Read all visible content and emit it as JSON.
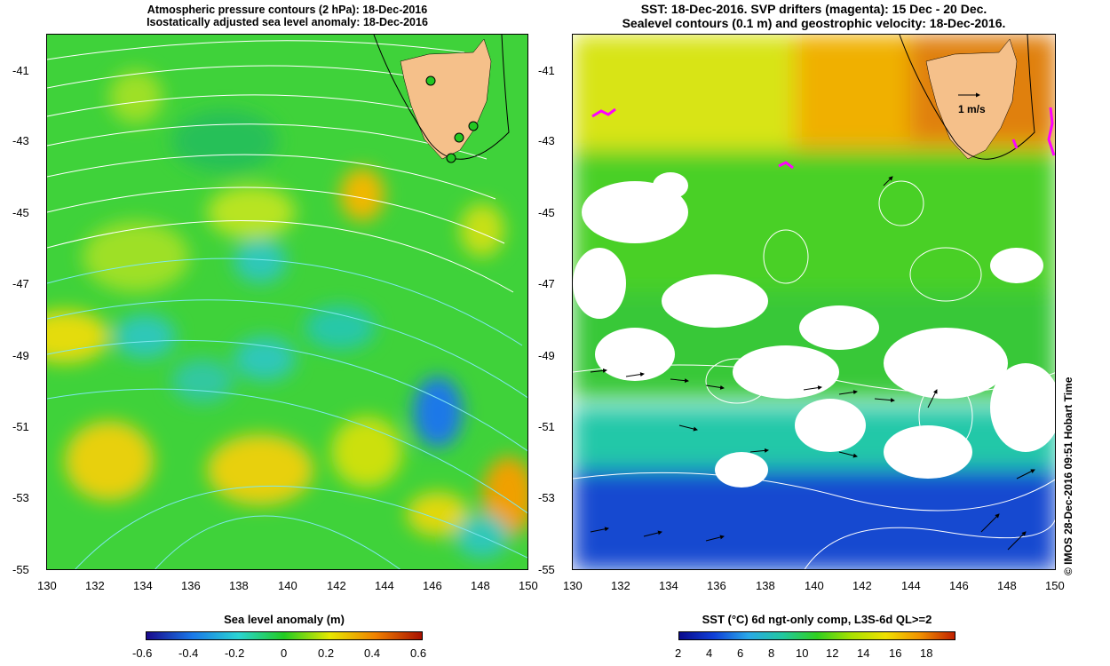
{
  "left_panel": {
    "title_line1": "Atmospheric pressure contours (2 hPa): 18-Dec-2016",
    "title_line2": "Isostatically adjusted sea level anomaly: 18-Dec-2016",
    "y_ticks": [
      "-41",
      "-43",
      "-45",
      "-47",
      "-49",
      "-51",
      "-53",
      "-55"
    ],
    "x_ticks": [
      "130",
      "132",
      "134",
      "136",
      "138",
      "140",
      "142",
      "144",
      "146",
      "148",
      "150"
    ],
    "colorbar_title": "Sea level anomaly (m)",
    "colorbar_ticks": [
      "-0.6",
      "-0.4",
      "-0.2",
      "0",
      "0.2",
      "0.4",
      "0.6"
    ],
    "colorbar_colors": [
      "#1a0a8c",
      "#1a78e8",
      "#2ad4d4",
      "#22cc22",
      "#e8e800",
      "#f08000",
      "#a81000"
    ]
  },
  "right_panel": {
    "title_line1": "SST: 18-Dec-2016. SVP drifters (magenta): 15 Dec - 20 Dec.",
    "title_line2": "Sealevel contours (0.1 m) and geostrophic velocity: 18-Dec-2016.",
    "y_ticks": [
      "-41",
      "-43",
      "-45",
      "-47",
      "-49",
      "-51",
      "-53",
      "-55"
    ],
    "x_ticks": [
      "130",
      "132",
      "134",
      "136",
      "138",
      "140",
      "142",
      "144",
      "146",
      "148",
      "150"
    ],
    "scale_label": "1 m/s",
    "colorbar_title": "SST (°C) 6d ngt-only comp, L3S-6d QL>=2",
    "colorbar_ticks": [
      "2",
      "4",
      "6",
      "8",
      "10",
      "12",
      "14",
      "16",
      "18"
    ],
    "colorbar_colors": [
      "#0a0a8c",
      "#1040d8",
      "#2aa8e8",
      "#22c8a0",
      "#30d020",
      "#a8e000",
      "#f0e000",
      "#f09000",
      "#c02000"
    ]
  },
  "credit": "© IMOS 28-Dec-2016 09:51 Hobart Time"
}
